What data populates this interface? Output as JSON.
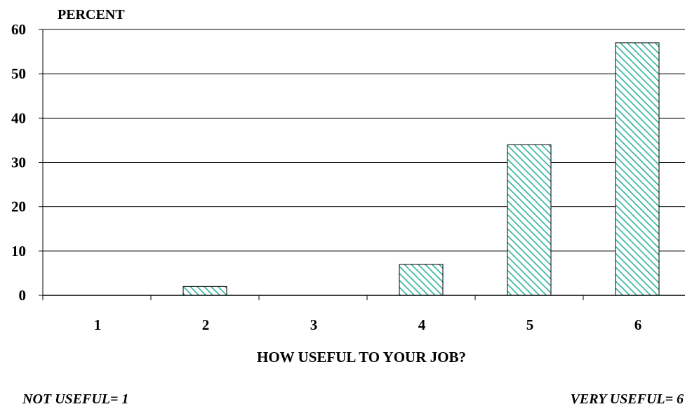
{
  "chart_data": {
    "type": "bar",
    "title": "",
    "ylabel": "PERCENT",
    "xlabel": "HOW USEFUL TO YOUR JOB?",
    "categories": [
      "1",
      "2",
      "3",
      "4",
      "5",
      "6"
    ],
    "values": [
      0,
      2,
      0,
      7,
      34,
      57
    ],
    "ylim": [
      0,
      60
    ],
    "yticks": [
      "0",
      "10",
      "20",
      "30",
      "40",
      "50",
      "60"
    ],
    "grid": true,
    "bar_color": "#2db39a",
    "bar_pattern": "diagonal-hatch",
    "annotations": {
      "left": "NOT USEFUL= 1",
      "right": "VERY USEFUL= 6"
    }
  }
}
